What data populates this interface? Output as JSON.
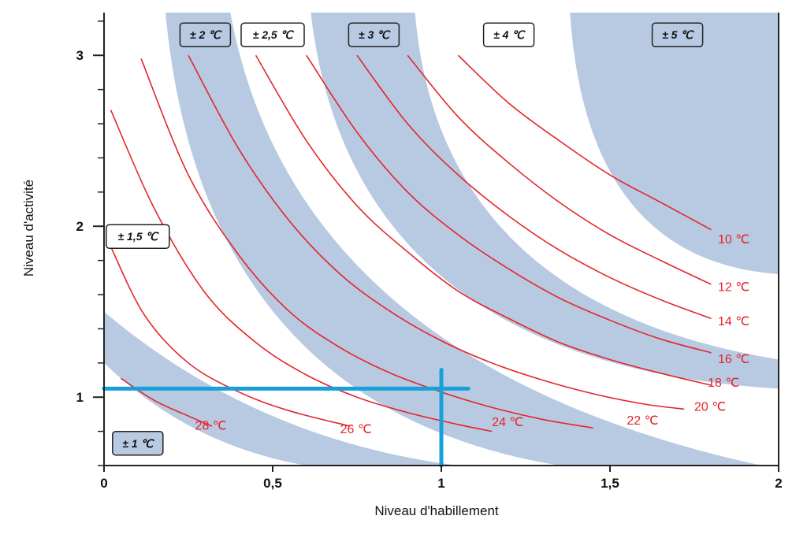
{
  "chart_data": {
    "type": "line",
    "title": "",
    "xlabel": "Niveau d'habillement",
    "ylabel": "Niveau d'activité",
    "xlim": [
      0,
      2
    ],
    "ylim": [
      0.6,
      3.25
    ],
    "x_ticks": [
      {
        "value": 0,
        "label": "0"
      },
      {
        "value": 0.5,
        "label": "0,5"
      },
      {
        "value": 1,
        "label": "1"
      },
      {
        "value": 1.5,
        "label": "1,5"
      },
      {
        "value": 2,
        "label": "2"
      }
    ],
    "y_ticks": [
      {
        "value": 1,
        "label": "1"
      },
      {
        "value": 2,
        "label": "2"
      },
      {
        "value": 3,
        "label": "3"
      }
    ],
    "y_minor_step": 0.2,
    "grid": false,
    "colors": {
      "curves": "#e3262b",
      "bands": "#b8c9e2",
      "guide": "#1aa0d8",
      "axis": "#222222"
    },
    "series": [
      {
        "name": "10 ℃",
        "x": [
          1.05,
          1.2,
          1.35,
          1.5,
          1.65,
          1.8
        ],
        "y": [
          3.0,
          2.72,
          2.5,
          2.3,
          2.14,
          1.98
        ]
      },
      {
        "name": "12 ℃",
        "x": [
          0.9,
          1.05,
          1.2,
          1.35,
          1.5,
          1.65,
          1.8
        ],
        "y": [
          3.0,
          2.64,
          2.37,
          2.14,
          1.95,
          1.8,
          1.66
        ]
      },
      {
        "name": "14 ℃",
        "x": [
          0.75,
          0.9,
          1.05,
          1.2,
          1.35,
          1.5,
          1.65,
          1.8
        ],
        "y": [
          3.0,
          2.6,
          2.3,
          2.06,
          1.86,
          1.7,
          1.57,
          1.46
        ]
      },
      {
        "name": "16 ℃",
        "x": [
          0.6,
          0.75,
          0.9,
          1.05,
          1.2,
          1.35,
          1.5,
          1.65,
          1.8
        ],
        "y": [
          3.0,
          2.55,
          2.2,
          1.95,
          1.75,
          1.58,
          1.45,
          1.34,
          1.26
        ]
      },
      {
        "name": "18 ℃",
        "x": [
          0.45,
          0.6,
          0.75,
          0.9,
          1.05,
          1.2,
          1.35,
          1.5,
          1.65,
          1.8
        ],
        "y": [
          3.0,
          2.5,
          2.12,
          1.85,
          1.62,
          1.46,
          1.32,
          1.22,
          1.14,
          1.07
        ]
      },
      {
        "name": "20 ℃",
        "x": [
          0.25,
          0.4,
          0.55,
          0.7,
          0.85,
          1.0,
          1.15,
          1.3,
          1.45,
          1.6,
          1.72
        ],
        "y": [
          3.0,
          2.45,
          2.03,
          1.72,
          1.5,
          1.33,
          1.2,
          1.1,
          1.02,
          0.96,
          0.93
        ]
      },
      {
        "name": "22 ℃",
        "x": [
          0.11,
          0.25,
          0.4,
          0.55,
          0.7,
          0.85,
          1.0,
          1.15,
          1.3,
          1.45
        ],
        "y": [
          2.98,
          2.3,
          1.83,
          1.5,
          1.29,
          1.14,
          1.03,
          0.94,
          0.87,
          0.82
        ]
      },
      {
        "name": "24 ℃",
        "x": [
          0.02,
          0.15,
          0.3,
          0.45,
          0.6,
          0.75,
          0.9,
          1.05,
          1.15
        ],
        "y": [
          2.68,
          2.1,
          1.61,
          1.32,
          1.13,
          1.0,
          0.91,
          0.84,
          0.8
        ]
      },
      {
        "name": "26 ℃",
        "x": [
          0.02,
          0.12,
          0.25,
          0.4,
          0.55,
          0.73
        ],
        "y": [
          1.88,
          1.48,
          1.2,
          1.03,
          0.92,
          0.83
        ]
      },
      {
        "name": "28 ℃",
        "x": [
          0.05,
          0.15,
          0.25,
          0.32
        ],
        "y": [
          1.11,
          0.98,
          0.89,
          0.83
        ]
      }
    ],
    "curve_labels": [
      {
        "text": "10 ℃",
        "x": 1.82,
        "y": 1.9
      },
      {
        "text": "12 ℃",
        "x": 1.82,
        "y": 1.62
      },
      {
        "text": "14 ℃",
        "x": 1.82,
        "y": 1.42
      },
      {
        "text": "16 ℃",
        "x": 1.82,
        "y": 1.2
      },
      {
        "text": "18 ℃",
        "x": 1.79,
        "y": 1.06
      },
      {
        "text": "20 ℃",
        "x": 1.75,
        "y": 0.92
      },
      {
        "text": "22 ℃",
        "x": 1.55,
        "y": 0.84
      },
      {
        "text": "24 ℃",
        "x": 1.15,
        "y": 0.83
      },
      {
        "text": "26 ℃",
        "x": 0.7,
        "y": 0.79
      },
      {
        "text": "28 ℃",
        "x": 0.27,
        "y": 0.81
      }
    ],
    "zones": [
      {
        "text": "± 1 ℃",
        "x": 0.1,
        "y": 0.73,
        "shaded": true
      },
      {
        "text": "± 1,5 ℃",
        "x": 0.1,
        "y": 1.94,
        "shaded": false
      },
      {
        "text": "± 2 ℃",
        "x": 0.3,
        "y": 3.12,
        "shaded": true
      },
      {
        "text": "± 2,5 ℃",
        "x": 0.5,
        "y": 3.12,
        "shaded": false
      },
      {
        "text": "± 3 ℃",
        "x": 0.8,
        "y": 3.12,
        "shaded": true
      },
      {
        "text": "± 4 ℃",
        "x": 1.2,
        "y": 3.12,
        "shaded": false
      },
      {
        "text": "± 5 ℃",
        "x": 1.7,
        "y": 3.12,
        "shaded": true
      }
    ],
    "guide_lines": [
      {
        "orientation": "horizontal",
        "y": 1.05,
        "from": 0,
        "to": 1.08
      },
      {
        "orientation": "vertical",
        "x": 1.0,
        "from": 1.16,
        "to": 0.6
      }
    ]
  }
}
